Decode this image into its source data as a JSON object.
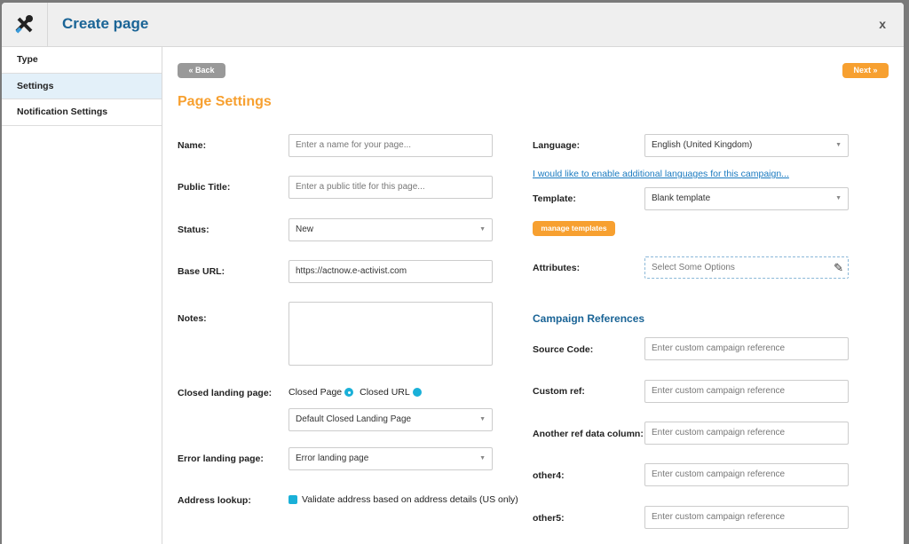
{
  "header": {
    "title": "Create page",
    "close_label": "x"
  },
  "sidebar": {
    "items": [
      {
        "label": "Type"
      },
      {
        "label": "Settings",
        "active": true
      },
      {
        "label": "Notification Settings"
      }
    ]
  },
  "nav": {
    "back_label": "Back",
    "next_label": "Next"
  },
  "page_title": "Page Settings",
  "left": {
    "name": {
      "label": "Name:",
      "placeholder": "Enter a name for your page..."
    },
    "public_title": {
      "label": "Public Title:",
      "placeholder": "Enter a public title for this page..."
    },
    "status": {
      "label": "Status:",
      "value": "New"
    },
    "base_url": {
      "label": "Base URL:",
      "value": "https://actnow.e-activist.com"
    },
    "notes": {
      "label": "Notes:",
      "value": ""
    },
    "closed_landing": {
      "label": "Closed landing page:",
      "option1": "Closed Page",
      "option2": "Closed URL",
      "selected": "Closed Page",
      "value": "Default Closed Landing Page"
    },
    "error_landing": {
      "label": "Error landing page:",
      "value": "Error landing page"
    },
    "address_lookup": {
      "label": "Address lookup:",
      "checkbox_label": "Validate address based on address details (US only)"
    }
  },
  "right": {
    "language": {
      "label": "Language:",
      "value": "English (United Kingdom)"
    },
    "languages_link": "I would like to enable additional languages for this campaign...",
    "template": {
      "label": "Template:",
      "value": "Blank template"
    },
    "manage_templates": "manage templates",
    "attributes": {
      "label": "Attributes:",
      "placeholder": "Select Some Options"
    },
    "campaign_refs": {
      "heading": "Campaign References",
      "placeholder": "Enter custom campaign reference",
      "fields": [
        {
          "label": "Source Code:"
        },
        {
          "label": "Custom ref:"
        },
        {
          "label": "Another ref data column:"
        },
        {
          "label": "other4:"
        },
        {
          "label": "other5:"
        }
      ]
    }
  },
  "colors": {
    "accent": "#f7a030",
    "brand": "#1a6496",
    "radio": "#1ab0d8",
    "back": "#999999"
  }
}
